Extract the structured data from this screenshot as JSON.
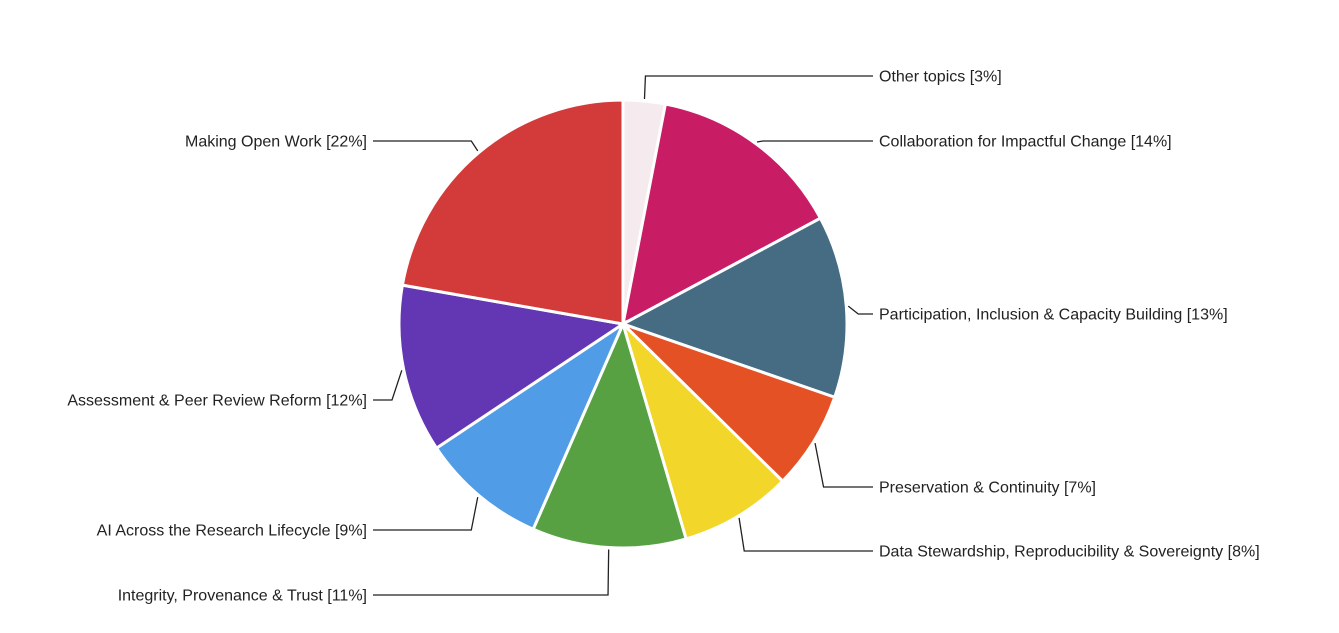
{
  "chart_data": {
    "type": "pie",
    "title": "",
    "start_angle": "12 o'clock, clockwise",
    "slices": [
      {
        "label": "Other topics [3%]",
        "value": 3,
        "color": "#f5eaed"
      },
      {
        "label": "Collaboration for Impactful Change [14%]",
        "value": 14,
        "color": "#c81d65"
      },
      {
        "label": "Participation, Inclusion & Capacity Building [13%]",
        "value": 13,
        "color": "#466c84"
      },
      {
        "label": "Preservation & Continuity [7%]",
        "value": 7,
        "color": "#e35124"
      },
      {
        "label": "Data Stewardship, Reproducibility & Sovereignty [8%]",
        "value": 8,
        "color": "#f2d72a"
      },
      {
        "label": "Integrity, Provenance & Trust [11%]",
        "value": 11,
        "color": "#57a143"
      },
      {
        "label": "AI Across the Research Lifecycle [9%]",
        "value": 9,
        "color": "#509ce6"
      },
      {
        "label": "Assessment & Peer Review Reform [12%]",
        "value": 12,
        "color": "#6336b4"
      },
      {
        "label": "Making Open Work [22%]",
        "value": 22,
        "color": "#d33b3b"
      }
    ]
  }
}
